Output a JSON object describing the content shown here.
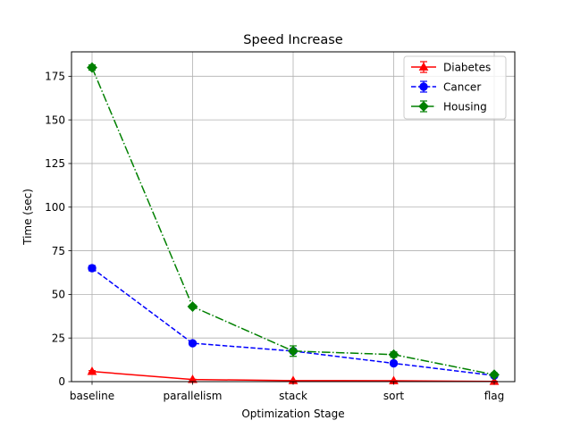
{
  "chart_data": {
    "type": "line",
    "title": "Speed Increase",
    "xlabel": "Optimization Stage",
    "ylabel": "Time (sec)",
    "categories": [
      "baseline",
      "parallelism",
      "stack",
      "sort",
      "flag"
    ],
    "ylim": [
      0,
      189
    ],
    "yticks": [
      0,
      25,
      50,
      75,
      100,
      125,
      150,
      175
    ],
    "grid": true,
    "legend_position": "top-right",
    "series": [
      {
        "name": "Diabetes",
        "values": [
          5.8,
          1.2,
          0.6,
          0.5,
          0.1
        ],
        "error": [
          0.5,
          0.2,
          0.1,
          0.1,
          0.05
        ],
        "color": "#ff0000",
        "marker": "triangle",
        "linestyle": "solid"
      },
      {
        "name": "Cancer",
        "values": [
          65,
          22,
          17.5,
          10.5,
          3.5
        ],
        "error": [
          1.5,
          1.0,
          1.0,
          1.0,
          0.5
        ],
        "color": "#0000ff",
        "marker": "circle",
        "linestyle": "dashed"
      },
      {
        "name": "Housing",
        "values": [
          180,
          43,
          17.5,
          15.5,
          4
        ],
        "error": [
          1.5,
          1.0,
          3.0,
          1.5,
          1.0
        ],
        "color": "#008000",
        "marker": "diamond",
        "linestyle": "dashdot"
      }
    ]
  }
}
